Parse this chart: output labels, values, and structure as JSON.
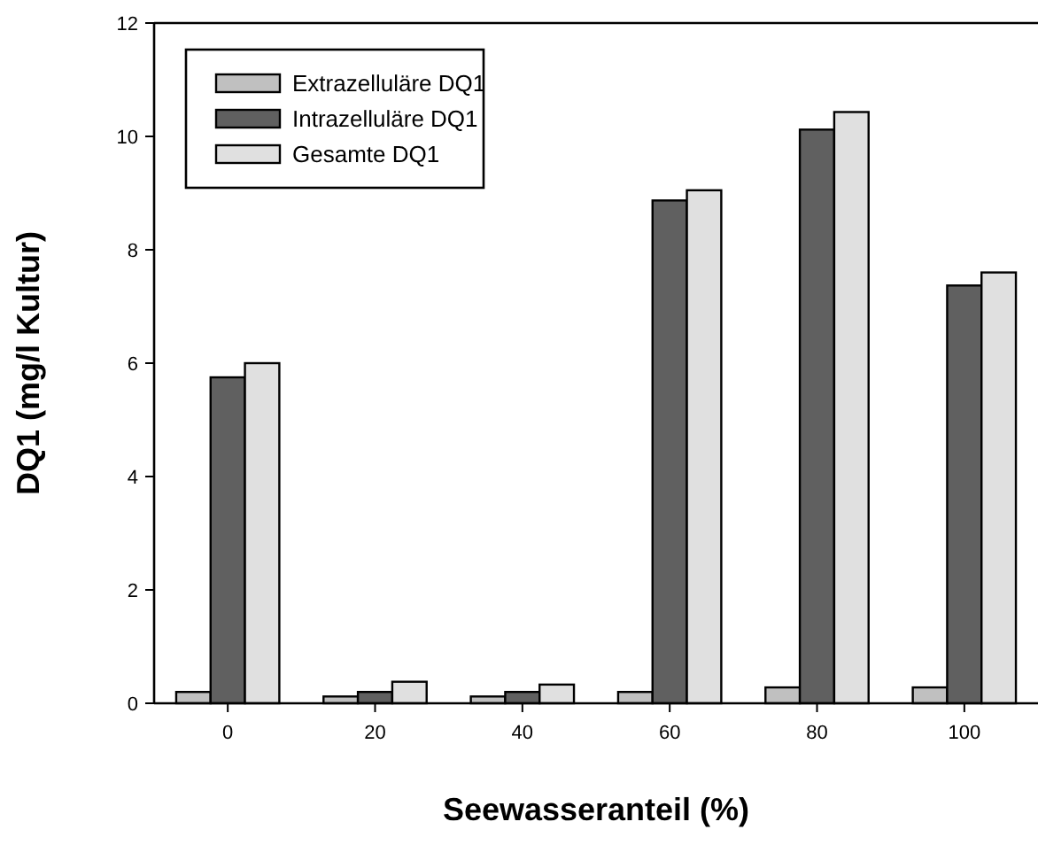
{
  "chart_data": {
    "type": "bar",
    "xlabel": "Seewasseranteil (%)",
    "ylabel": "DQ1 (mg/l Kultur)",
    "categories": [
      "0",
      "20",
      "40",
      "60",
      "80",
      "100"
    ],
    "series": [
      {
        "name": "Extrazelluläre DQ1",
        "color": "#c0c0c0",
        "values": [
          0.2,
          0.12,
          0.12,
          0.2,
          0.28,
          0.28
        ]
      },
      {
        "name": "Intrazelluläre DQ1",
        "color": "#606060",
        "values": [
          5.75,
          0.2,
          0.2,
          8.87,
          10.12,
          7.37
        ]
      },
      {
        "name": "Gesamte DQ1",
        "color": "#e0e0e0",
        "values": [
          6.0,
          0.38,
          0.33,
          9.05,
          10.43,
          7.6
        ]
      }
    ],
    "ylim": [
      0,
      12
    ],
    "yticks": [
      0,
      2,
      4,
      6,
      8,
      10,
      12
    ],
    "grid": false,
    "legend": "top left"
  }
}
